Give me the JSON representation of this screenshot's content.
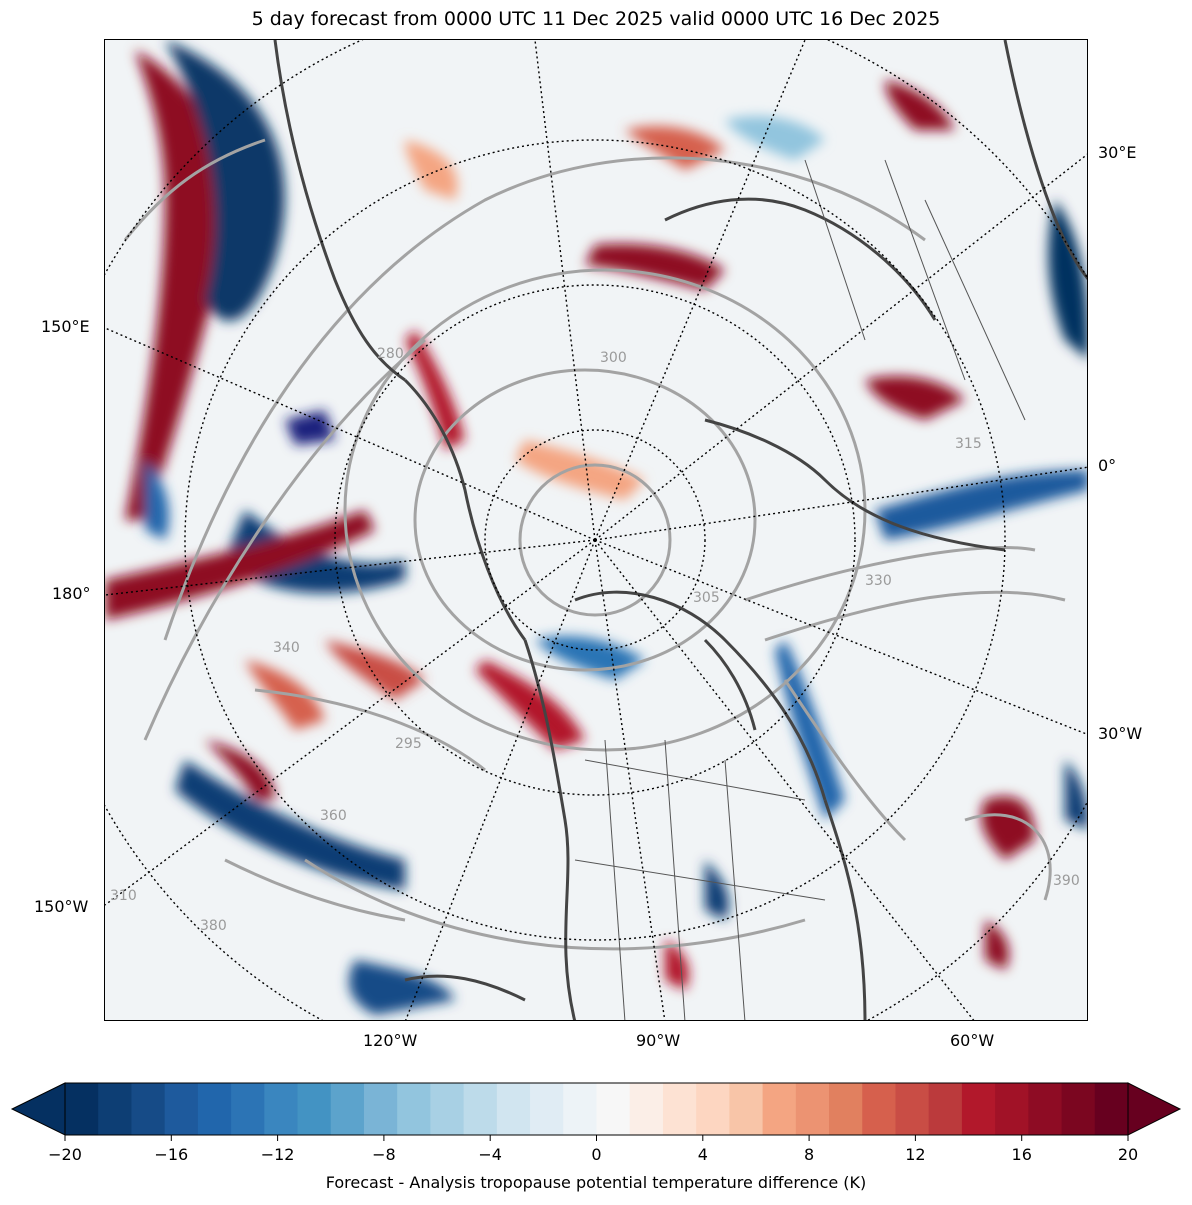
{
  "title": "5 day forecast from 0000 UTC 11 Dec 2025 valid 0000 UTC 16 Dec 2025",
  "lon_labels_left": [
    "150°E",
    "180°",
    "150°W"
  ],
  "lon_labels_right": [
    "30°E",
    "0°",
    "30°W"
  ],
  "lon_labels_bottom": [
    "120°W",
    "90°W",
    "60°W"
  ],
  "contour_labels": [
    "280",
    "300",
    "305",
    "315",
    "330",
    "340",
    "360",
    "380",
    "390",
    "295",
    "310"
  ],
  "colorbar": {
    "label": "Forecast - Analysis tropopause potential temperature difference (K)",
    "ticks": [
      "−20",
      "−16",
      "−12",
      "−8",
      "−4",
      "0",
      "4",
      "8",
      "12",
      "16",
      "20"
    ],
    "colors": [
      "#053061",
      "#0d3e74",
      "#164b87",
      "#1e5a9d",
      "#2166ac",
      "#2c74b5",
      "#3a86bf",
      "#4393c3",
      "#5ca3cc",
      "#7ab4d6",
      "#92c5de",
      "#a8d0e4",
      "#bddbea",
      "#d1e5f0",
      "#e0ecf4",
      "#edf3f7",
      "#f7f7f7",
      "#fbeee7",
      "#fde2d3",
      "#fdd6c1",
      "#f8c5a8",
      "#f4a582",
      "#ec9372",
      "#e1805f",
      "#d6604d",
      "#c94d45",
      "#bb3a3c",
      "#b2182b",
      "#a11227",
      "#8e0c24",
      "#7b0620",
      "#67001f"
    ]
  }
}
